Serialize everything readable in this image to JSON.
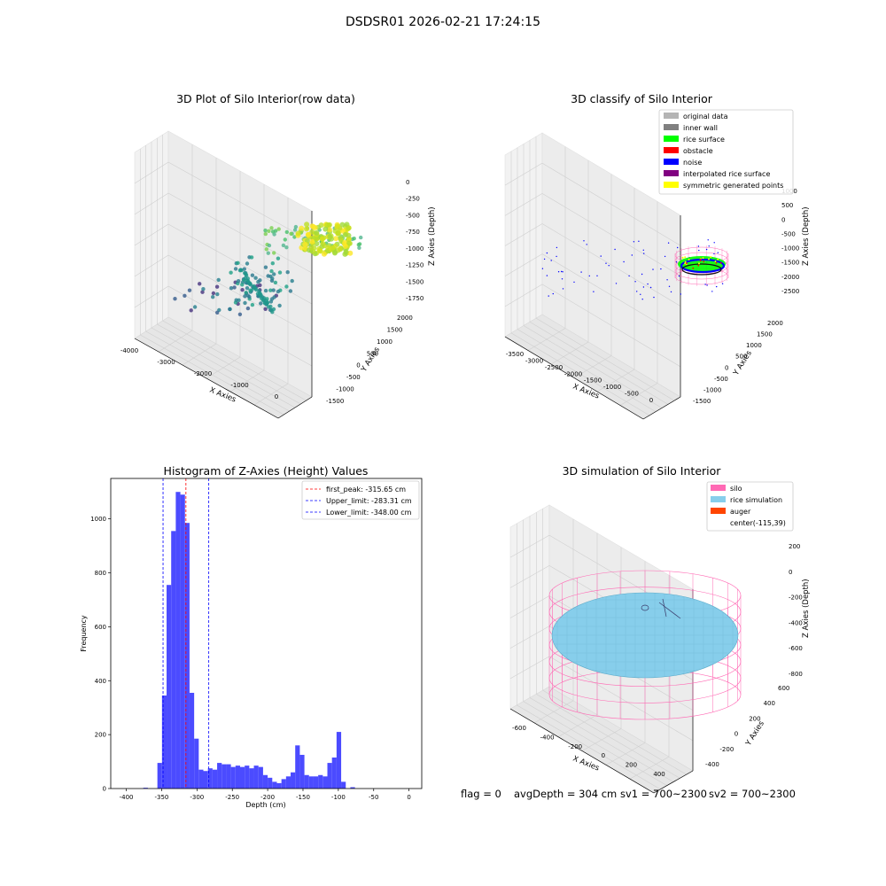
{
  "suptitle": "DSDSR01 2026-02-21 17:24:15",
  "status_bar": {
    "flag": "flag = 0",
    "avg_depth": "avgDepth = 304 cm",
    "sv1": "sv1 = 700~2300",
    "sv2": "sv2 = 700~2300"
  },
  "colors": {
    "original_data": "#b4b4b4",
    "inner_wall": "#808080",
    "rice_surface": "#00ff00",
    "obstacle": "#ff0000",
    "noise": "#0000ff",
    "interpolated_rice_surface": "#800080",
    "symmetric_generated_points": "#ffff00",
    "silo": "#ff69b4",
    "rice_simulation": "#87ceeb",
    "auger": "#ff4500",
    "histogram_bar": "#4b4bff",
    "first_peak_line": "#ff0000",
    "limit_line": "#0000ff"
  },
  "chart_data": [
    {
      "type": "scatter",
      "dimensions": 3,
      "title": "3D Plot of Silo Interior(row data)",
      "xlabel": "X Axies",
      "ylabel": "Y Axies",
      "zlabel": "Z Axies (Depth)",
      "x_ticks": [
        "-4000",
        "-3000",
        "-2000",
        "-1000",
        "0"
      ],
      "y_ticks": [
        "-1500",
        "-1000",
        "-500",
        "0",
        "500",
        "1000",
        "1500",
        "2000"
      ],
      "z_ticks": [
        "0",
        "-250",
        "-500",
        "-750",
        "-1000",
        "-1250",
        "-1500",
        "-1750"
      ],
      "colormap": "viridis by depth"
    },
    {
      "type": "scatter",
      "dimensions": 3,
      "title": "3D classify of Silo Interior",
      "xlabel": "X Axies",
      "ylabel": "Y Axies",
      "zlabel": "Z Axies (Depth)",
      "x_ticks": [
        "-3500",
        "-3000",
        "-2500",
        "-2000",
        "-1500",
        "-1000",
        "-500",
        "0"
      ],
      "y_ticks": [
        "-1500",
        "-1000",
        "-500",
        "0",
        "500",
        "1000",
        "1500",
        "2000"
      ],
      "z_ticks": [
        "1000",
        "500",
        "0",
        "-500",
        "-1000",
        "-1500",
        "-2000",
        "-2500"
      ],
      "legend_placement": "top-right",
      "legend": [
        {
          "label": "original data",
          "color_key": "original_data"
        },
        {
          "label": "inner wall",
          "color_key": "inner_wall"
        },
        {
          "label": "rice surface",
          "color_key": "rice_surface"
        },
        {
          "label": "obstacle",
          "color_key": "obstacle"
        },
        {
          "label": "noise",
          "color_key": "noise"
        },
        {
          "label": "interpolated rice surface",
          "color_key": "interpolated_rice_surface"
        },
        {
          "label": "symmetric generated points",
          "color_key": "symmetric_generated_points"
        }
      ]
    },
    {
      "type": "bar",
      "title": "Histogram of Z-Axies (Height) Values",
      "xlabel": "Depth (cm)",
      "ylabel": "Frequency",
      "xlim": [
        -422,
        18
      ],
      "ylim": [
        0,
        1150
      ],
      "x_ticks": [
        -400,
        -350,
        -300,
        -250,
        -200,
        -150,
        -100,
        -50,
        0
      ],
      "y_ticks": [
        0,
        200,
        400,
        600,
        800,
        1000
      ],
      "bin_start": -356,
      "bin_width": 6.5,
      "values": [
        95,
        345,
        755,
        955,
        1100,
        1090,
        985,
        355,
        185,
        70,
        65,
        75,
        70,
        95,
        90,
        90,
        80,
        85,
        80,
        85,
        75,
        85,
        80,
        50,
        40,
        25,
        20,
        35,
        45,
        60,
        160,
        125,
        50,
        45,
        45,
        50,
        45,
        95,
        115,
        210,
        25,
        0,
        5
      ],
      "outliers": [
        {
          "x": -376,
          "value": 3
        }
      ],
      "lines": [
        {
          "label": "first_peak: -315.65 cm",
          "x": -315.65,
          "color_key": "first_peak_line"
        },
        {
          "label": "Upper_limit: -283.31 cm",
          "x": -283.31,
          "color_key": "limit_line"
        },
        {
          "label": "Lower_limit: -348.00 cm",
          "x": -348.0,
          "color_key": "limit_line"
        }
      ],
      "legend_placement": "top-right"
    },
    {
      "type": "surface",
      "dimensions": 3,
      "title": "3D simulation of Silo Interior",
      "xlabel": "X Axies",
      "ylabel": "Y Axies",
      "zlabel": "Z Axies (Depth)",
      "x_ticks": [
        "-600",
        "-400",
        "-200",
        "0",
        "200",
        "400"
      ],
      "y_ticks": [
        "-400",
        "-200",
        "0",
        "200",
        "400",
        "600"
      ],
      "z_ticks": [
        "200",
        "0",
        "-200",
        "-400",
        "-600",
        "-800"
      ],
      "legend_placement": "top-right",
      "legend": [
        {
          "label": "silo",
          "color_key": "silo"
        },
        {
          "label": "rice simulation",
          "color_key": "rice_simulation"
        },
        {
          "label": "auger",
          "color_key": "auger"
        },
        {
          "label": "center(-115,39)",
          "color_key": ""
        }
      ]
    }
  ]
}
